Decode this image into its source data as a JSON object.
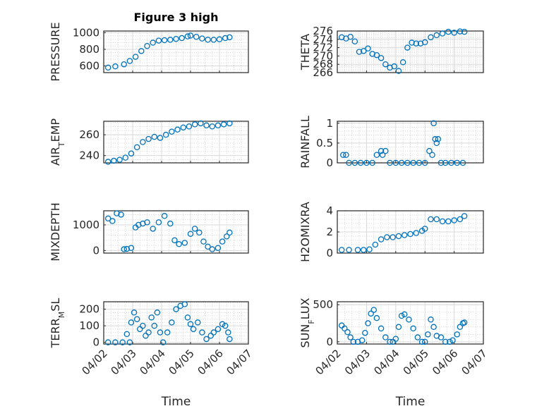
{
  "figure_title": "Figure 3 high",
  "chart_data": [
    {
      "type": "scatter",
      "title": "Figure 3 high",
      "ylabel": "PRESSURE",
      "ylim": [
        520,
        1020
      ],
      "yticks": [
        "600",
        "800",
        "1000"
      ],
      "ytick_values": [
        600,
        800,
        1000
      ],
      "xlim": [
        0,
        5
      ],
      "xticks": [
        "04/02",
        "04/03",
        "04/04",
        "04/05",
        "04/06",
        "04/07"
      ],
      "x": [
        0.15,
        0.4,
        0.7,
        0.9,
        1.1,
        1.3,
        1.5,
        1.7,
        1.9,
        2.1,
        2.3,
        2.5,
        2.7,
        2.9,
        3.0,
        3.2,
        3.4,
        3.6,
        3.8,
        4.0,
        4.2,
        4.35
      ],
      "y": [
        580,
        595,
        620,
        660,
        710,
        780,
        840,
        880,
        905,
        910,
        915,
        925,
        935,
        955,
        965,
        950,
        930,
        915,
        915,
        920,
        935,
        945
      ]
    },
    {
      "type": "scatter",
      "ylabel": "THETA",
      "ylim": [
        266,
        276
      ],
      "yticks": [
        "266",
        "268",
        "270",
        "272",
        "274",
        "276"
      ],
      "ytick_values": [
        266,
        268,
        270,
        272,
        274,
        276
      ],
      "xlim": [
        0,
        5
      ],
      "x": [
        0.15,
        0.3,
        0.45,
        0.6,
        0.75,
        0.9,
        1.05,
        1.2,
        1.35,
        1.5,
        1.65,
        1.8,
        1.95,
        2.1,
        2.25,
        2.4,
        2.55,
        2.7,
        2.85,
        3.0,
        3.2,
        3.4,
        3.6,
        3.8,
        4.0,
        4.2,
        4.35
      ],
      "y": [
        274.5,
        274.2,
        274.6,
        273.5,
        271.0,
        271.2,
        271.8,
        270.5,
        270.2,
        269.5,
        268.0,
        267.2,
        267.5,
        266.4,
        268.5,
        272.0,
        273.2,
        273.0,
        273.0,
        273.3,
        274.5,
        275.0,
        275.4,
        275.8,
        275.6,
        275.9,
        275.8
      ]
    },
    {
      "type": "scatter",
      "ylabel": "AIR_TEMP",
      "ylim": [
        233,
        273
      ],
      "yticks": [
        "240",
        "260"
      ],
      "ytick_values": [
        240,
        260
      ],
      "xlim": [
        0,
        5
      ],
      "x": [
        0.15,
        0.35,
        0.55,
        0.75,
        0.95,
        1.15,
        1.35,
        1.55,
        1.75,
        1.95,
        2.15,
        2.35,
        2.55,
        2.75,
        2.95,
        3.15,
        3.35,
        3.55,
        3.75,
        3.95,
        4.15,
        4.35
      ],
      "y": [
        234,
        235,
        236,
        238,
        242,
        248,
        253,
        256,
        258,
        257,
        260,
        263,
        265,
        267,
        268,
        270,
        271,
        269,
        268,
        269,
        270,
        271
      ]
    },
    {
      "type": "scatter",
      "ylabel": "RAINFALL",
      "ylim": [
        0,
        1.05
      ],
      "yticks": [
        "0",
        "0.5",
        "1"
      ],
      "ytick_values": [
        0,
        0.5,
        1
      ],
      "xlim": [
        0,
        5
      ],
      "x": [
        0.2,
        0.3,
        0.4,
        0.6,
        0.8,
        1.0,
        1.2,
        1.35,
        1.5,
        1.55,
        1.65,
        1.8,
        2.0,
        2.2,
        2.4,
        2.6,
        2.8,
        3.0,
        3.15,
        3.25,
        3.3,
        3.35,
        3.4,
        3.45,
        3.55,
        3.7,
        3.9,
        4.1,
        4.3
      ],
      "y": [
        0.2,
        0.2,
        0,
        0,
        0,
        0,
        0,
        0.2,
        0.3,
        0.2,
        0.3,
        0,
        0,
        0,
        0,
        0,
        0,
        0,
        0.3,
        0.2,
        1.0,
        0.6,
        0.5,
        0.6,
        0,
        0,
        0,
        0,
        0
      ]
    },
    {
      "type": "scatter",
      "ylabel": "MIXDEPTH",
      "ylim": [
        -100,
        1550
      ],
      "yticks": [
        "0",
        "1000"
      ],
      "ytick_values": [
        0,
        1000
      ],
      "xlim": [
        0,
        5
      ],
      "x": [
        0.15,
        0.3,
        0.45,
        0.6,
        0.7,
        0.8,
        0.95,
        1.1,
        1.2,
        1.35,
        1.5,
        1.7,
        1.9,
        2.1,
        2.3,
        2.45,
        2.6,
        2.8,
        3.0,
        3.15,
        3.3,
        3.45,
        3.6,
        3.75,
        3.95,
        4.1,
        4.25,
        4.35
      ],
      "y": [
        1250,
        1150,
        1450,
        1400,
        50,
        60,
        100,
        900,
        1000,
        1050,
        1100,
        850,
        1100,
        1350,
        1050,
        400,
        250,
        300,
        650,
        850,
        700,
        350,
        150,
        50,
        100,
        350,
        550,
        700
      ]
    },
    {
      "type": "scatter",
      "ylabel": "H2OMIXRA",
      "ylim": [
        0,
        4
      ],
      "yticks": [
        "0",
        "2",
        "4"
      ],
      "ytick_values": [
        0,
        2,
        4
      ],
      "xlim": [
        0,
        5
      ],
      "x": [
        0.15,
        0.4,
        0.7,
        0.9,
        1.1,
        1.3,
        1.5,
        1.7,
        1.9,
        2.1,
        2.3,
        2.5,
        2.7,
        2.9,
        3.0,
        3.2,
        3.4,
        3.6,
        3.8,
        4.0,
        4.2,
        4.35
      ],
      "y": [
        0.3,
        0.3,
        0.3,
        0.3,
        0.35,
        0.8,
        1.3,
        1.5,
        1.5,
        1.6,
        1.7,
        1.8,
        1.9,
        2.1,
        2.3,
        3.2,
        3.2,
        3.0,
        3.0,
        3.1,
        3.2,
        3.5
      ]
    },
    {
      "type": "scatter",
      "ylabel": "TERR_MSL",
      "ylim": [
        -10,
        245
      ],
      "yticks": [
        "0",
        "100",
        "200"
      ],
      "ytick_values": [
        0,
        100,
        200
      ],
      "xlim": [
        0,
        5
      ],
      "x": [
        0.15,
        0.4,
        0.65,
        0.8,
        0.9,
        0.95,
        1.05,
        1.15,
        1.25,
        1.35,
        1.45,
        1.55,
        1.65,
        1.75,
        1.85,
        1.95,
        2.05,
        2.2,
        2.35,
        2.5,
        2.65,
        2.8,
        2.9,
        3.0,
        3.1,
        3.25,
        3.4,
        3.55,
        3.7,
        3.8,
        3.95,
        4.1,
        4.2,
        4.3,
        4.35
      ],
      "y": [
        0,
        0,
        0,
        50,
        0,
        120,
        180,
        140,
        80,
        100,
        40,
        60,
        150,
        100,
        180,
        60,
        0,
        60,
        120,
        200,
        220,
        230,
        150,
        110,
        80,
        120,
        60,
        20,
        40,
        60,
        80,
        110,
        100,
        60,
        20
      ]
    },
    {
      "type": "scatter",
      "ylabel": "SUN_FLUX",
      "ylim": [
        -30,
        540
      ],
      "yticks": [
        "0",
        "500"
      ],
      "ytick_values": [
        0,
        500
      ],
      "xlim": [
        0,
        5
      ],
      "x": [
        0.15,
        0.25,
        0.35,
        0.45,
        0.55,
        0.7,
        0.85,
        0.95,
        1.05,
        1.15,
        1.25,
        1.35,
        1.5,
        1.65,
        1.8,
        1.9,
        2.0,
        2.1,
        2.2,
        2.3,
        2.45,
        2.6,
        2.75,
        2.9,
        3.0,
        3.1,
        3.2,
        3.3,
        3.4,
        3.55,
        3.7,
        3.85,
        3.95,
        4.1,
        4.2,
        4.3,
        4.35
      ],
      "y": [
        220,
        180,
        130,
        60,
        0,
        0,
        20,
        120,
        250,
        380,
        430,
        320,
        180,
        60,
        0,
        0,
        40,
        200,
        350,
        370,
        300,
        180,
        60,
        0,
        0,
        100,
        300,
        200,
        80,
        60,
        0,
        0,
        20,
        100,
        200,
        250,
        260
      ]
    }
  ],
  "x_axis_label": "Time",
  "x_tick_labels": [
    "04/02",
    "04/03",
    "04/04",
    "04/05",
    "04/06",
    "04/07"
  ],
  "marker_color": "#0072bd"
}
